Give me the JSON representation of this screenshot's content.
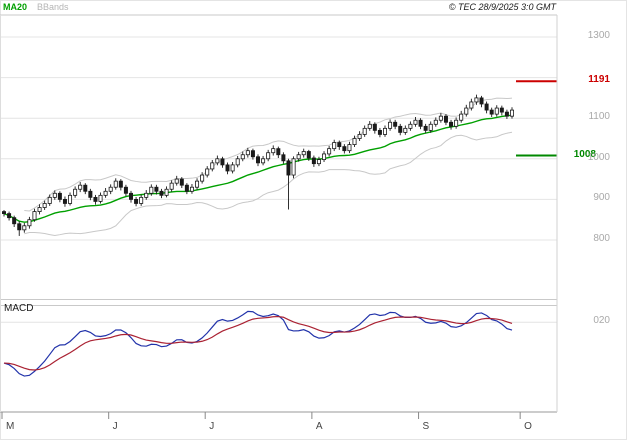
{
  "header": {
    "copyright": "© TEC 28/9/2025 3:0 GMT"
  },
  "chart_data": {
    "type": "candlestick",
    "title": "",
    "x_axis": {
      "months": [
        "M",
        "J",
        "J",
        "A",
        "S",
        "O"
      ],
      "month_start_indices": [
        0,
        21,
        40,
        61,
        82,
        102
      ]
    },
    "y_axis": {
      "gridlines": [
        800,
        900,
        1000,
        1100,
        1200,
        1300
      ],
      "labels": [
        "1300",
        "1100",
        "1000",
        "900",
        "800"
      ],
      "label_values": [
        1300,
        1100,
        1000,
        900,
        800
      ],
      "label_color": "#a9a9a9"
    },
    "levels": {
      "resistance": {
        "value": 1191,
        "label": "1191",
        "color": "#cc0000"
      },
      "support": {
        "value": 1008,
        "label": "1008",
        "color": "#008800"
      }
    },
    "indicators": {
      "ma20": {
        "label": "MA20",
        "period": 20,
        "color": "#00a000"
      },
      "bbands": {
        "label": "BBands",
        "period": 20,
        "stddev": 2,
        "color": "#c8c8c8"
      },
      "macd": {
        "label": "MACD",
        "fast": 12,
        "slow": 26,
        "signal": 9,
        "line_color": "#2233aa",
        "signal_color": "#aa2233",
        "axis_label": "020",
        "gridline_value": 20
      }
    },
    "candles": [
      [
        870,
        874,
        858,
        865
      ],
      [
        865,
        870,
        848,
        855
      ],
      [
        855,
        860,
        832,
        840
      ],
      [
        840,
        846,
        810,
        825
      ],
      [
        825,
        842,
        818,
        835
      ],
      [
        835,
        857,
        828,
        850
      ],
      [
        850,
        877,
        845,
        870
      ],
      [
        870,
        888,
        863,
        880
      ],
      [
        880,
        897,
        874,
        890
      ],
      [
        890,
        912,
        884,
        905
      ],
      [
        905,
        922,
        899,
        915
      ],
      [
        915,
        920,
        893,
        900
      ],
      [
        900,
        907,
        882,
        890
      ],
      [
        890,
        917,
        885,
        910
      ],
      [
        910,
        932,
        904,
        925
      ],
      [
        925,
        943,
        918,
        935
      ],
      [
        935,
        940,
        913,
        920
      ],
      [
        920,
        926,
        898,
        905
      ],
      [
        905,
        911,
        887,
        895
      ],
      [
        895,
        917,
        890,
        910
      ],
      [
        910,
        928,
        904,
        920
      ],
      [
        920,
        937,
        913,
        930
      ],
      [
        930,
        952,
        924,
        945
      ],
      [
        945,
        950,
        922,
        930
      ],
      [
        930,
        936,
        908,
        915
      ],
      [
        915,
        921,
        892,
        900
      ],
      [
        900,
        906,
        883,
        890
      ],
      [
        890,
        912,
        884,
        905
      ],
      [
        905,
        923,
        899,
        915
      ],
      [
        915,
        937,
        909,
        930
      ],
      [
        930,
        936,
        912,
        920
      ],
      [
        920,
        926,
        903,
        910
      ],
      [
        910,
        932,
        905,
        925
      ],
      [
        925,
        947,
        919,
        940
      ],
      [
        940,
        958,
        934,
        950
      ],
      [
        950,
        955,
        928,
        935
      ],
      [
        935,
        940,
        913,
        920
      ],
      [
        920,
        938,
        914,
        930
      ],
      [
        930,
        952,
        924,
        945
      ],
      [
        945,
        967,
        939,
        960
      ],
      [
        960,
        982,
        954,
        975
      ],
      [
        975,
        997,
        969,
        990
      ],
      [
        990,
        1008,
        984,
        1000
      ],
      [
        1000,
        1005,
        978,
        985
      ],
      [
        985,
        991,
        962,
        970
      ],
      [
        970,
        992,
        964,
        985
      ],
      [
        985,
        1007,
        979,
        1000
      ],
      [
        1000,
        1018,
        994,
        1010
      ],
      [
        1010,
        1027,
        1003,
        1020
      ],
      [
        1020,
        1025,
        998,
        1005
      ],
      [
        1005,
        1011,
        982,
        990
      ],
      [
        990,
        1007,
        984,
        1000
      ],
      [
        1000,
        1022,
        994,
        1015
      ],
      [
        1015,
        1033,
        1008,
        1025
      ],
      [
        1025,
        1030,
        1002,
        1010
      ],
      [
        1010,
        1016,
        988,
        995
      ],
      [
        995,
        1000,
        875,
        960
      ],
      [
        960,
        1006,
        952,
        1000
      ],
      [
        1000,
        1017,
        993,
        1010
      ],
      [
        1010,
        1025,
        1003,
        1018
      ],
      [
        1018,
        1022,
        995,
        1002
      ],
      [
        1002,
        1008,
        980,
        988
      ],
      [
        988,
        1005,
        982,
        998
      ],
      [
        998,
        1019,
        992,
        1012
      ],
      [
        1012,
        1032,
        1006,
        1025
      ],
      [
        1025,
        1047,
        1019,
        1040
      ],
      [
        1040,
        1045,
        1022,
        1030
      ],
      [
        1030,
        1036,
        1013,
        1020
      ],
      [
        1020,
        1042,
        1014,
        1035
      ],
      [
        1035,
        1057,
        1029,
        1050
      ],
      [
        1050,
        1068,
        1044,
        1060
      ],
      [
        1060,
        1082,
        1054,
        1075
      ],
      [
        1075,
        1093,
        1069,
        1085
      ],
      [
        1085,
        1090,
        1062,
        1070
      ],
      [
        1070,
        1076,
        1053,
        1060
      ],
      [
        1060,
        1082,
        1054,
        1075
      ],
      [
        1075,
        1097,
        1069,
        1090
      ],
      [
        1090,
        1096,
        1073,
        1080
      ],
      [
        1080,
        1086,
        1058,
        1065
      ],
      [
        1065,
        1082,
        1059,
        1075
      ],
      [
        1075,
        1092,
        1069,
        1085
      ],
      [
        1085,
        1103,
        1079,
        1095
      ],
      [
        1095,
        1100,
        1073,
        1080
      ],
      [
        1080,
        1086,
        1063,
        1070
      ],
      [
        1070,
        1092,
        1064,
        1085
      ],
      [
        1085,
        1102,
        1079,
        1095
      ],
      [
        1095,
        1113,
        1089,
        1105
      ],
      [
        1105,
        1110,
        1083,
        1090
      ],
      [
        1090,
        1096,
        1072,
        1080
      ],
      [
        1080,
        1102,
        1074,
        1095
      ],
      [
        1095,
        1118,
        1089,
        1110
      ],
      [
        1110,
        1133,
        1104,
        1125
      ],
      [
        1125,
        1148,
        1119,
        1140
      ],
      [
        1140,
        1158,
        1133,
        1150
      ],
      [
        1150,
        1155,
        1127,
        1135
      ],
      [
        1135,
        1141,
        1112,
        1120
      ],
      [
        1120,
        1126,
        1103,
        1110
      ],
      [
        1110,
        1132,
        1104,
        1125
      ],
      [
        1125,
        1131,
        1107,
        1115
      ],
      [
        1115,
        1121,
        1098,
        1105
      ],
      [
        1105,
        1127,
        1099,
        1120
      ]
    ]
  }
}
